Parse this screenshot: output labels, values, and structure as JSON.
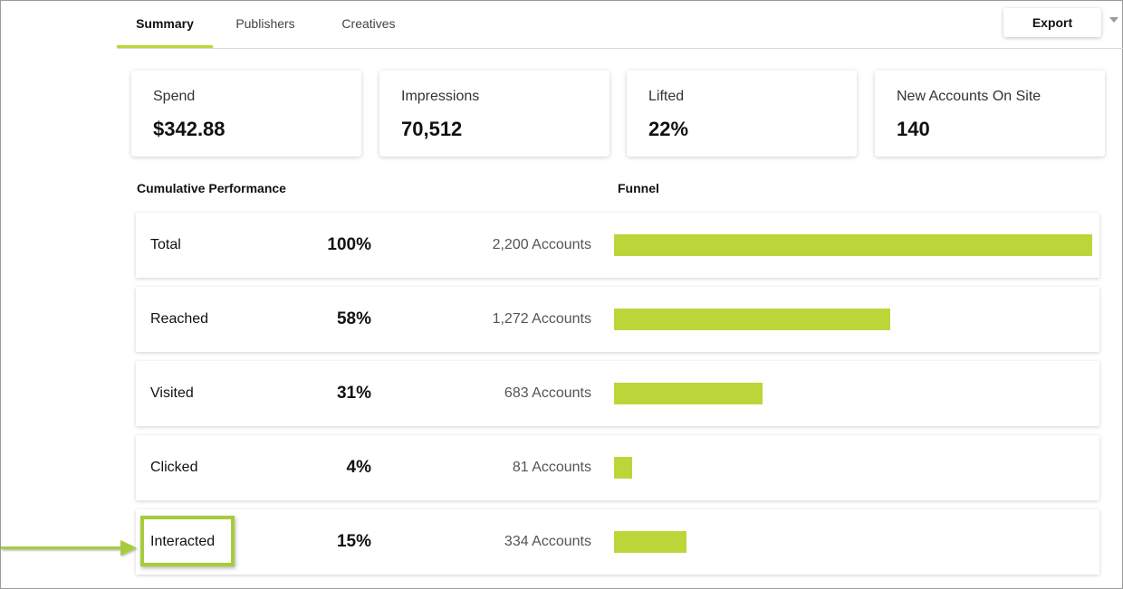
{
  "tabs": [
    {
      "label": "Summary",
      "active": true
    },
    {
      "label": "Publishers",
      "active": false
    },
    {
      "label": "Creatives",
      "active": false
    }
  ],
  "export_label": "Export",
  "kpis": [
    {
      "label": "Spend",
      "value": "$342.88"
    },
    {
      "label": "Impressions",
      "value": "70,512"
    },
    {
      "label": "Lifted",
      "value": "22%"
    },
    {
      "label": "New Accounts On Site",
      "value": "140"
    }
  ],
  "sections": {
    "cumulative": "Cumulative Performance",
    "funnel": "Funnel"
  },
  "rows": [
    {
      "label": "Total",
      "pct": "100%",
      "accounts": "2,200 Accounts",
      "fraction": 1.0
    },
    {
      "label": "Reached",
      "pct": "58%",
      "accounts": "1,272 Accounts",
      "fraction": 0.578
    },
    {
      "label": "Visited",
      "pct": "31%",
      "accounts": "683 Accounts",
      "fraction": 0.31
    },
    {
      "label": "Clicked",
      "pct": "4%",
      "accounts": "81 Accounts",
      "fraction": 0.037
    },
    {
      "label": "Interacted",
      "pct": "15%",
      "accounts": "334 Accounts",
      "fraction": 0.152
    }
  ],
  "colors": {
    "accent": "#bcd63a",
    "highlight": "#a6cc3c"
  },
  "icons": {
    "export_caret": "chevron-down-icon",
    "annotation_arrow": "arrow-right-icon"
  }
}
